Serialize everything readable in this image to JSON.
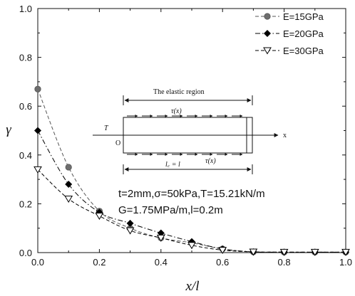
{
  "chart_data": {
    "type": "line",
    "x": [
      0.0,
      0.1,
      0.2,
      0.3,
      0.4,
      0.5,
      0.6,
      0.7,
      0.8,
      0.9,
      1.0
    ],
    "series": [
      {
        "name": "E=15GPa",
        "marker": "circle",
        "dash": "dash",
        "color": "#555555",
        "values": [
          0.67,
          0.35,
          0.17,
          0.1,
          0.06,
          0.04,
          0.015,
          0.003,
          0.002,
          0.002,
          0.002
        ]
      },
      {
        "name": "E=20GPa",
        "marker": "diamond",
        "dash": "dashdot",
        "color": "#000000",
        "values": [
          0.5,
          0.28,
          0.165,
          0.12,
          0.08,
          0.045,
          0.015,
          0.003,
          0.002,
          0.002,
          0.002
        ]
      },
      {
        "name": "E=30GPa",
        "marker": "triangle-down-open",
        "dash": "dash",
        "color": "#000000",
        "values": [
          0.34,
          0.22,
          0.15,
          0.09,
          0.06,
          0.03,
          0.01,
          0.003,
          0.002,
          0.002,
          0.002
        ]
      }
    ],
    "xlabel": "x/l",
    "ylabel": "γ",
    "xlim": [
      0,
      1.0
    ],
    "ylim": [
      0,
      1.0
    ],
    "xticks": [
      "0.0",
      "0.2",
      "0.4",
      "0.6",
      "0.8",
      "1.0"
    ],
    "yticks": [
      "0.0",
      "0.2",
      "0.4",
      "0.6",
      "0.8",
      "1.0"
    ],
    "legend_position": "top-right",
    "annotations": {
      "params_line1": "t=2mm,σ=50kPa,T=15.21kN/m",
      "params_line2": "G=1.75MPa/m,l=0.2m"
    },
    "inset": {
      "region_label": "The elastic region",
      "tau_top": "τ(x)",
      "tau_bottom": "τ(x)",
      "force": "T",
      "origin": "O",
      "axis": "x",
      "length": "l꜀ = l"
    }
  }
}
